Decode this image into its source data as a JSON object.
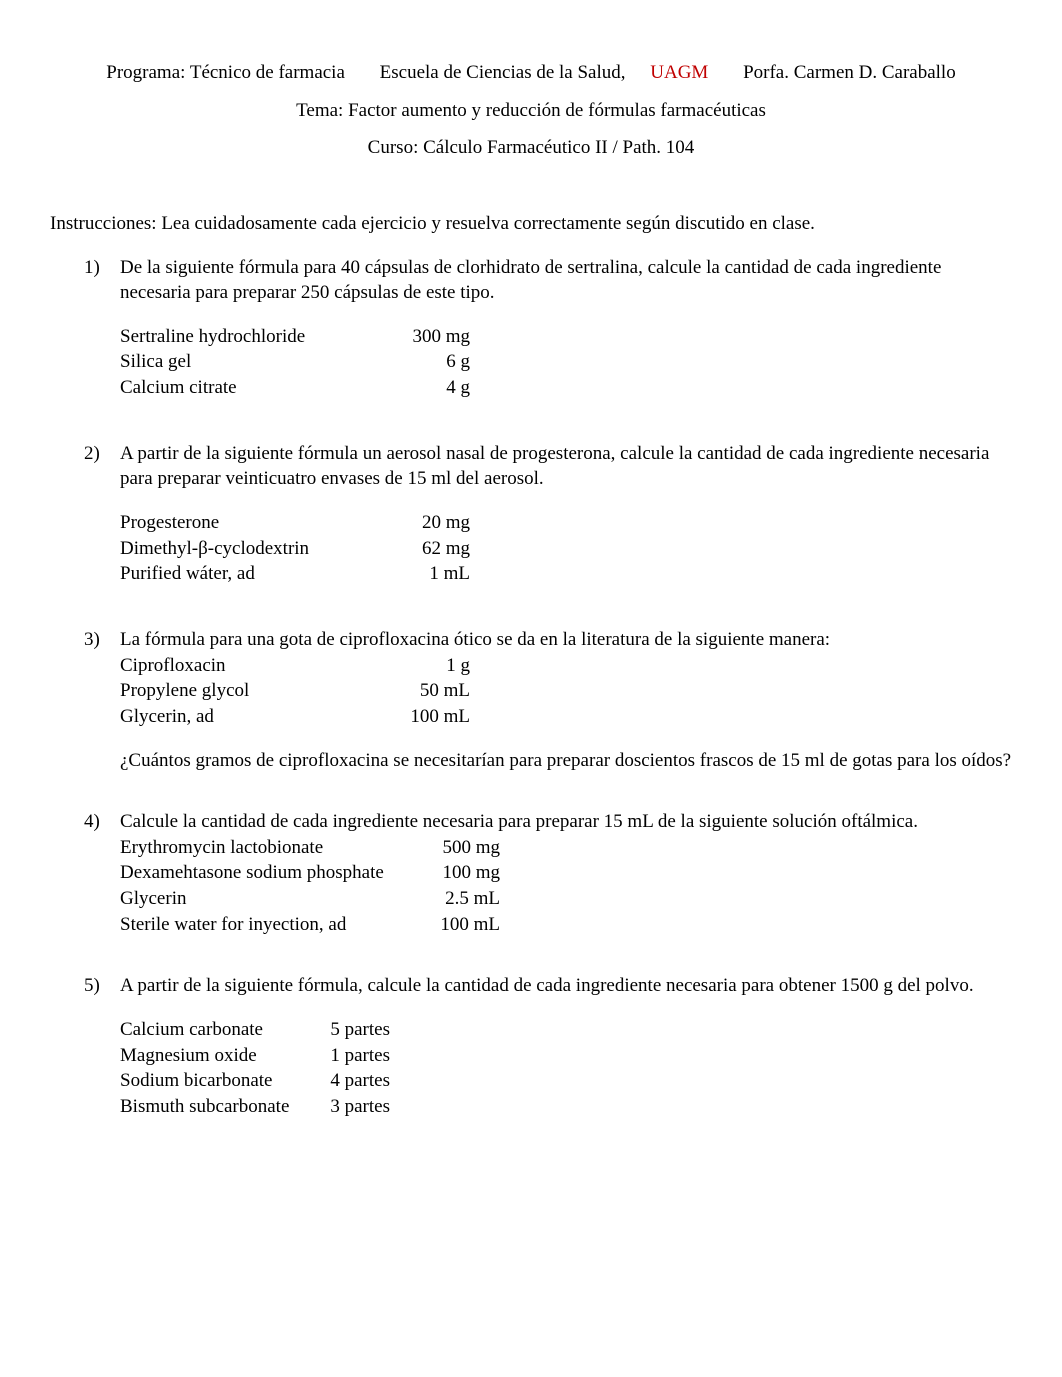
{
  "header": {
    "program_label": "Programa: Técnico de farmacia",
    "school_label": "Escuela de Ciencias de la Salud, ",
    "uagm": "UAGM",
    "professor": "Porfa. Carmen D. Caraballo",
    "theme": "Tema:  Factor aumento y reducción de fórmulas farmacéuticas",
    "course": "Curso: Cálculo Farmacéutico II / Path. 104"
  },
  "instructions": "Instrucciones: Lea cuidadosamente cada ejercicio y resuelva correctamente según discutido en clase.",
  "q1": {
    "num": "1)",
    "text": "De la siguiente fórmula para 40 cápsulas de clorhidrato de sertralina, calcule la cantidad de cada ingrediente necesaria para preparar 250 cápsulas de este tipo.",
    "ingredients": [
      {
        "name": "Sertraline hydrochloride",
        "amt": "300 mg"
      },
      {
        "name": "Silica gel",
        "amt": "6 g"
      },
      {
        "name": "Calcium citrate",
        "amt": "4 g"
      }
    ]
  },
  "q2": {
    "num": "2)",
    "text": "A partir de la siguiente fórmula un aerosol nasal de progesterona, calcule la cantidad de cada ingrediente necesaria para preparar veinticuatro envases de 15 ml del aerosol.",
    "ingredients": [
      {
        "name": "Progesterone",
        "amt": "20 mg"
      },
      {
        "name": "Dimethyl-β-cyclodextrin",
        "amt": "62 mg"
      },
      {
        "name": "Purified wáter, ad",
        "amt": "1 mL"
      }
    ]
  },
  "q3": {
    "num": "3)",
    "text": "La fórmula para una gota de ciprofloxacina ótico se da en la literatura de la siguiente manera:",
    "ingredients": [
      {
        "name": "Ciprofloxacin",
        "amt": "1 g"
      },
      {
        "name": "Propylene glycol",
        "amt": "50 mL"
      },
      {
        "name": "Glycerin, ad",
        "amt": "100 mL"
      }
    ],
    "followup": "¿Cuántos gramos  de ciprofloxacina se necesitarían para preparar doscientos frascos de 15 ml de gotas para los oídos?"
  },
  "q4": {
    "num": "4)",
    "text": "Calcule la cantidad de cada ingrediente necesaria para preparar 15 mL de la siguiente solución oftálmica.",
    "ingredients": [
      {
        "name": "Erythromycin lactobionate",
        "amt": "500 mg"
      },
      {
        "name": "Dexamehtasone sodium phosphate",
        "amt": "100 mg"
      },
      {
        "name": "Glycerin",
        "amt": "2.5 mL"
      },
      {
        "name": "Sterile water for inyection, ad",
        "amt": "100 mL"
      }
    ]
  },
  "q5": {
    "num": "5)",
    "text": "A partir de la siguiente fórmula, calcule la cantidad de cada ingrediente necesaria para obtener 1500 g del polvo.",
    "ingredients": [
      {
        "name": "Calcium carbonate",
        "amt": "5 partes"
      },
      {
        "name": "Magnesium oxide",
        "amt": "1 partes"
      },
      {
        "name": "Sodium bicarbonate",
        "amt": "4 partes"
      },
      {
        "name": "Bismuth subcarbonate",
        "amt": "3 partes"
      }
    ]
  }
}
